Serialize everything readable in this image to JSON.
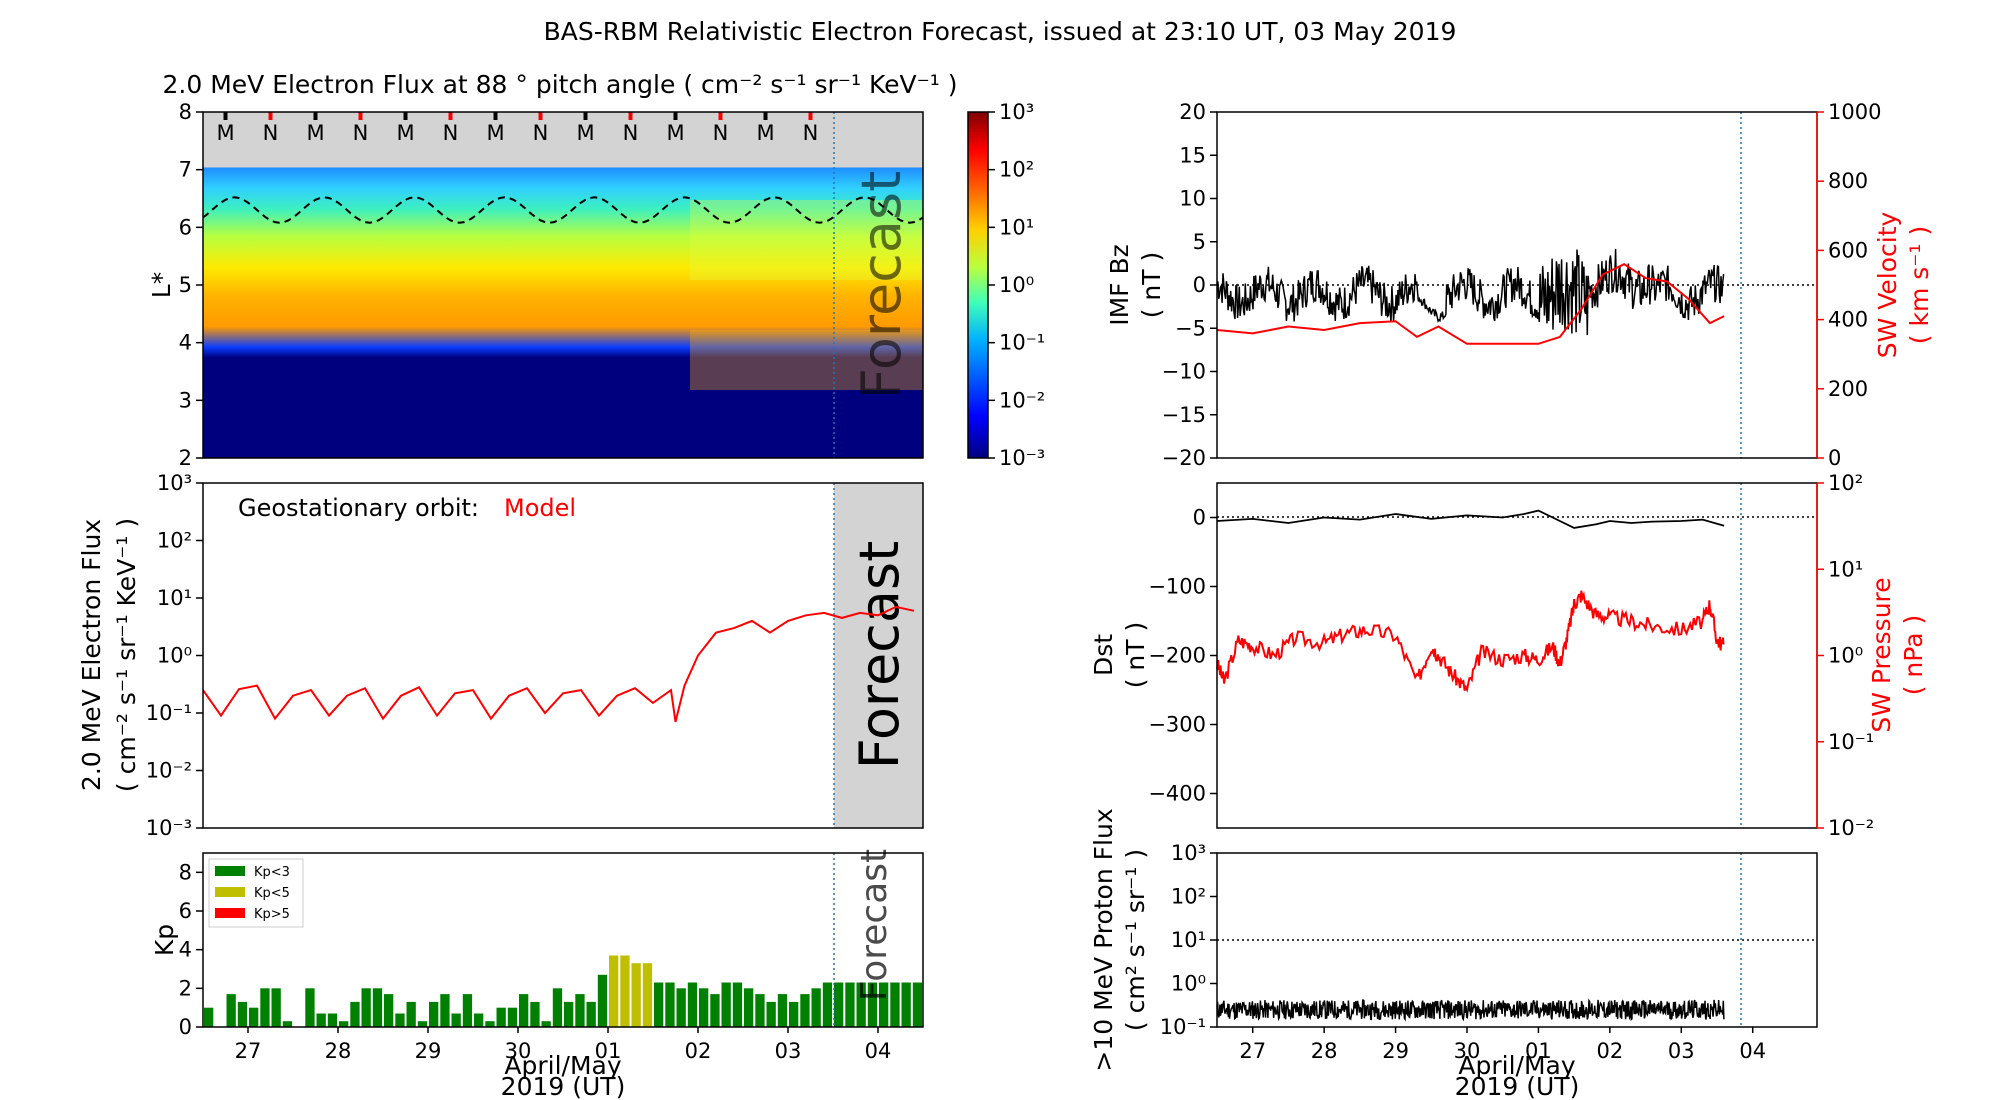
{
  "title": "BAS-RBM Relativistic Electron Forecast, issued at 23:10 UT, 03 May 2019",
  "xaxis": {
    "day_ticks": [
      "27",
      "28",
      "29",
      "30",
      "01",
      "02",
      "03",
      "04"
    ],
    "label_line1": "April/May",
    "label_line2": "2019 (UT)"
  },
  "chart_data": [
    {
      "id": "lstar-flux",
      "type": "heatmap",
      "title": "2.0 MeV Electron Flux at 88 ° pitch angle ( cm⁻² s⁻¹ sr⁻¹ KeV⁻¹ )",
      "ylabel": "L*",
      "ylim": [
        2,
        8
      ],
      "yticks": [
        "2",
        "3",
        "4",
        "5",
        "6",
        "7",
        "8"
      ],
      "forecast_label": "Forecast",
      "mn_markers": [
        "M",
        "N",
        "M",
        "N",
        "M",
        "N",
        "M",
        "N",
        "M",
        "N",
        "M",
        "N",
        "M",
        "N"
      ],
      "colorbar": {
        "scale": "log",
        "range": [
          0.001,
          1000
        ],
        "ticks": [
          "10⁻³",
          "10⁻²",
          "10⁻¹",
          "10⁰",
          "10¹",
          "10²",
          "10³"
        ]
      },
      "dashed_contour_mean_L": 6.3
    },
    {
      "id": "geo-flux",
      "type": "line",
      "ylabel_line1": "2.0 MeV Electron Flux",
      "ylabel_line2": "( cm⁻² s⁻¹ sr⁻¹ KeV⁻¹ )",
      "yscale": "log",
      "ylim": [
        0.001,
        1000
      ],
      "yticks": [
        "10⁻³",
        "10⁻²",
        "10⁻¹",
        "10⁰",
        "10¹",
        "10²",
        "10³"
      ],
      "legend_text": "Geostationary orbit:",
      "legend_model": "Model",
      "forecast_label": "Forecast",
      "series": [
        {
          "name": "Model",
          "color": "#ff0000",
          "x": [
            -0.5,
            -0.3,
            -0.1,
            0.1,
            0.3,
            0.5,
            0.7,
            0.9,
            1.1,
            1.3,
            1.5,
            1.7,
            1.9,
            2.1,
            2.3,
            2.5,
            2.7,
            2.9,
            3.1,
            3.3,
            3.5,
            3.7,
            3.9,
            4.1,
            4.3,
            4.5,
            4.7,
            4.75,
            4.85,
            5.0,
            5.2,
            5.4,
            5.6,
            5.8,
            6.0,
            6.2,
            6.4,
            6.6,
            6.8,
            7.0,
            7.2,
            7.4
          ],
          "y": [
            0.25,
            0.09,
            0.26,
            0.3,
            0.08,
            0.2,
            0.25,
            0.09,
            0.2,
            0.27,
            0.08,
            0.2,
            0.28,
            0.09,
            0.22,
            0.25,
            0.08,
            0.2,
            0.27,
            0.1,
            0.22,
            0.25,
            0.09,
            0.2,
            0.27,
            0.15,
            0.25,
            0.07,
            0.3,
            1.0,
            2.5,
            3.0,
            4.0,
            2.5,
            4.0,
            5.0,
            5.5,
            4.5,
            5.5,
            5.0,
            7.0,
            6.0
          ]
        }
      ],
      "x_unit": "days since 27 Apr 00 UT"
    },
    {
      "id": "kp",
      "type": "bar",
      "ylabel": "Kp",
      "ylim": [
        0,
        9
      ],
      "yticks": [
        "0",
        "2",
        "4",
        "6",
        "8"
      ],
      "forecast_label": "Forecast",
      "legend": [
        {
          "name": "Kp<3",
          "color": "#008000"
        },
        {
          "name": "Kp<5",
          "color": "#bfbf00"
        },
        {
          "name": "Kp>5",
          "color": "#ff0000"
        }
      ],
      "values": [
        1.0,
        0.0,
        1.7,
        1.3,
        1.0,
        2.0,
        2.0,
        0.3,
        0.0,
        2.0,
        0.7,
        0.7,
        0.3,
        1.3,
        2.0,
        2.0,
        1.7,
        0.7,
        1.3,
        0.3,
        1.3,
        1.7,
        0.7,
        1.7,
        0.7,
        0.3,
        1.0,
        1.0,
        1.7,
        1.3,
        0.3,
        2.0,
        1.3,
        1.7,
        1.3,
        2.7,
        3.7,
        3.7,
        3.3,
        3.3,
        2.3,
        2.3,
        2.0,
        2.3,
        2.0,
        1.7,
        2.3,
        2.3,
        2.0,
        1.7,
        1.3,
        1.7,
        1.3,
        1.7,
        2.0,
        2.3,
        2.3,
        2.3,
        2.3,
        2.3,
        2.3,
        2.3,
        2.3,
        2.3
      ]
    },
    {
      "id": "imf-sw",
      "type": "line",
      "ylabel_line1": "IMF Bz",
      "ylabel_line2": "( nT )",
      "ylim": [
        -20,
        20
      ],
      "yticks": [
        "−20",
        "−15",
        "−10",
        "−5",
        "0",
        "5",
        "10",
        "15",
        "20"
      ],
      "y2label_line1": "SW Velocity",
      "y2label_line2": "( km s⁻¹ )",
      "y2lim": [
        0,
        1000
      ],
      "y2ticks": [
        "0",
        "200",
        "400",
        "600",
        "800",
        "1000"
      ],
      "series": [
        {
          "name": "IMF Bz",
          "color": "#000000"
        },
        {
          "name": "SW Velocity",
          "color": "#ff0000",
          "x": [
            -0.5,
            0.0,
            0.5,
            1.0,
            1.5,
            2.0,
            2.3,
            2.6,
            3.0,
            3.4,
            3.7,
            4.0,
            4.3,
            4.6,
            4.9,
            5.2,
            5.5,
            5.8,
            6.1,
            6.4,
            6.6
          ],
          "y": [
            370,
            360,
            380,
            370,
            390,
            395,
            350,
            380,
            330,
            330,
            330,
            330,
            350,
            430,
            530,
            560,
            520,
            510,
            460,
            390,
            410
          ]
        }
      ]
    },
    {
      "id": "dst-pressure",
      "type": "line",
      "ylabel_line1": "Dst",
      "ylabel_line2": "( nT )",
      "ylim": [
        -450,
        50
      ],
      "yticks": [
        "−400",
        "−300",
        "−200",
        "−100",
        "0"
      ],
      "y2label_line1": "SW Pressure",
      "y2label_line2": "( nPa )",
      "y2scale": "log",
      "y2lim": [
        0.01,
        100
      ],
      "y2ticks": [
        "10⁻²",
        "10⁻¹",
        "10⁰",
        "10¹",
        "10²"
      ],
      "series": [
        {
          "name": "Dst",
          "color": "#000000",
          "x": [
            -0.5,
            0.0,
            0.5,
            1.0,
            1.5,
            2.0,
            2.5,
            3.0,
            3.5,
            3.8,
            4.0,
            4.2,
            4.5,
            4.8,
            5.0,
            5.3,
            5.6,
            6.0,
            6.3,
            6.6
          ],
          "y": [
            -5,
            -2,
            -8,
            0,
            -3,
            5,
            -2,
            3,
            0,
            5,
            10,
            0,
            -15,
            -10,
            -5,
            -8,
            -6,
            -5,
            -3,
            -12
          ]
        },
        {
          "name": "SW Pressure",
          "color": "#ff0000",
          "x": [
            -0.5,
            -0.4,
            -0.2,
            0.0,
            0.3,
            0.6,
            1.0,
            1.3,
            1.6,
            2.0,
            2.3,
            2.5,
            2.6,
            2.8,
            3.0,
            3.2,
            3.5,
            3.8,
            4.0,
            4.2,
            4.3,
            4.4,
            4.5,
            4.6,
            4.8,
            5.0,
            5.3,
            5.6,
            6.0,
            6.3,
            6.4,
            6.5,
            6.6
          ],
          "y": [
            0.8,
            0.5,
            1.5,
            1.3,
            1.0,
            1.6,
            1.4,
            1.8,
            2.0,
            1.7,
            0.5,
            1.3,
            1.0,
            0.6,
            0.4,
            1.1,
            0.9,
            1.0,
            0.9,
            1.3,
            0.8,
            1.6,
            4.0,
            5.0,
            3.0,
            2.8,
            2.5,
            2.2,
            2.0,
            2.5,
            4.0,
            1.5,
            1.3
          ]
        }
      ]
    },
    {
      "id": "proton-flux",
      "type": "line",
      "ylabel_line1": ">10 MeV Proton Flux",
      "ylabel_line2": "( cm² s⁻¹ sr⁻¹ )",
      "yscale": "log",
      "ylim": [
        0.1,
        1000
      ],
      "yticks": [
        "10⁻¹",
        "10⁰",
        "10¹",
        "10²",
        "10³"
      ],
      "threshold": 10,
      "series": [
        {
          "name": ">10 MeV Proton Flux",
          "color": "#000000",
          "mean": 0.25
        }
      ]
    }
  ]
}
